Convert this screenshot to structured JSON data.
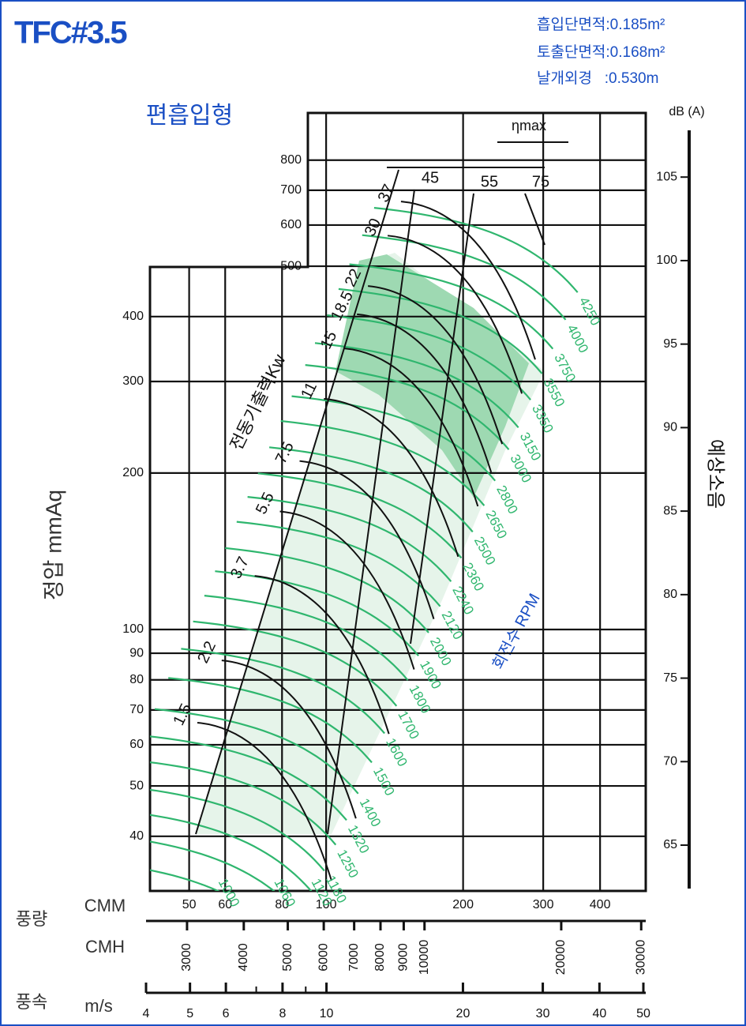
{
  "chart_data": {
    "type": "fan-curve",
    "title": "TFC#3.5",
    "specs": [
      "흡입단면적:0.185m²",
      "토출단면적:0.168m²",
      "날개외경   :0.530m"
    ],
    "subtitle": "편흡입형",
    "log_scale": true,
    "grid": true,
    "y_label": "정압 mmAq",
    "ylim": [
      31.4,
      986
    ],
    "yticks": [
      40,
      50,
      60,
      70,
      80,
      90,
      100,
      200,
      300,
      400,
      500,
      600,
      700,
      800
    ],
    "y2_label": "예상소음",
    "y2_unit": "dB (A)",
    "y2lim": [
      62.4,
      107.8
    ],
    "y2ticks": [
      65,
      70,
      75,
      80,
      85,
      90,
      95,
      100,
      105
    ],
    "flow_label": "풍량",
    "x_unit": "CMM",
    "xlim": [
      40.2,
      504
    ],
    "xticks": [
      50,
      60,
      80,
      100,
      200,
      300,
      400
    ],
    "cmh_unit": "CMH",
    "cmh_lim": [
      2437,
      30700
    ],
    "cmh_ticks": [
      3000,
      4000,
      5000,
      6000,
      7000,
      8000,
      9000,
      10000,
      20000,
      30000
    ],
    "speed_label": "풍속",
    "speed_unit": "m/s",
    "speed_lim": [
      4,
      50
    ],
    "speed_ticks": [
      4,
      5,
      6,
      8,
      10,
      20,
      30,
      40,
      50
    ],
    "speed_minor_ticks": [
      7,
      9
    ],
    "rpm_label": "회전수 RPM",
    "rpm_color": "#2fb66e",
    "rpm": [
      1000,
      1060,
      1120,
      1180,
      1250,
      1320,
      1400,
      1500,
      1600,
      1700,
      1800,
      1900,
      2000,
      2120,
      2240,
      2360,
      2500,
      2650,
      2800,
      3000,
      3150,
      3350,
      3550,
      3750,
      4000,
      4250
    ],
    "kw_label": "전동기출력Kw",
    "kw": [
      1.5,
      2.2,
      3.7,
      5.5,
      7.5,
      11,
      15,
      18.5,
      22,
      30,
      37
    ],
    "efficiency_label": "ηmax",
    "efficiency": [
      45,
      55,
      75
    ]
  }
}
